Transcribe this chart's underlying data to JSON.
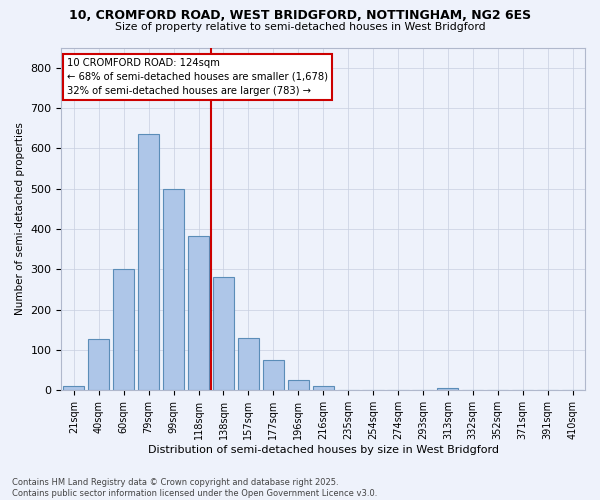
{
  "title1": "10, CROMFORD ROAD, WEST BRIDGFORD, NOTTINGHAM, NG2 6ES",
  "title2": "Size of property relative to semi-detached houses in West Bridgford",
  "xlabel": "Distribution of semi-detached houses by size in West Bridgford",
  "ylabel": "Number of semi-detached properties",
  "bin_labels": [
    "21sqm",
    "40sqm",
    "60sqm",
    "79sqm",
    "99sqm",
    "118sqm",
    "138sqm",
    "157sqm",
    "177sqm",
    "196sqm",
    "216sqm",
    "235sqm",
    "254sqm",
    "274sqm",
    "293sqm",
    "313sqm",
    "332sqm",
    "352sqm",
    "371sqm",
    "391sqm",
    "410sqm"
  ],
  "bin_values": [
    10,
    128,
    300,
    635,
    500,
    383,
    280,
    130,
    75,
    25,
    12,
    0,
    0,
    0,
    0,
    5,
    0,
    0,
    0,
    0,
    0
  ],
  "bar_color": "#aec6e8",
  "bar_edge_color": "#5b8db8",
  "vline_x": 5.5,
  "annotation_title": "10 CROMFORD ROAD: 124sqm",
  "annotation_line1": "← 68% of semi-detached houses are smaller (1,678)",
  "annotation_line2": "32% of semi-detached houses are larger (783) →",
  "annotation_box_color": "#ffffff",
  "annotation_box_edge": "#cc0000",
  "vline_color": "#cc0000",
  "footer": "Contains HM Land Registry data © Crown copyright and database right 2025.\nContains public sector information licensed under the Open Government Licence v3.0.",
  "bg_color": "#eef2fb",
  "grid_color": "#c8cfe0",
  "ylim": [
    0,
    850
  ],
  "yticks": [
    0,
    100,
    200,
    300,
    400,
    500,
    600,
    700,
    800
  ]
}
